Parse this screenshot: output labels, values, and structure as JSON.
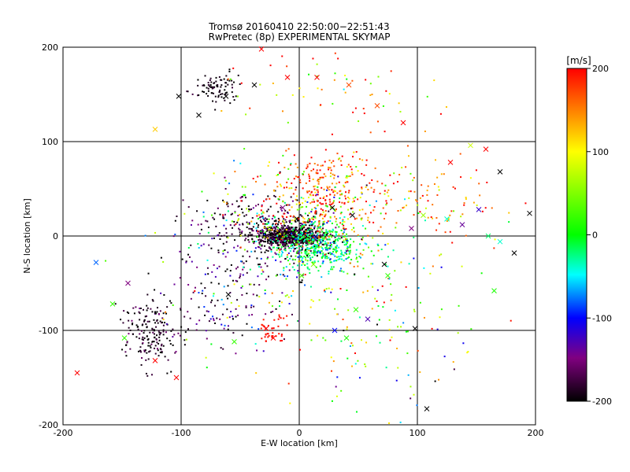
{
  "chart_data": {
    "type": "scatter",
    "title": "Tromsø 20160410 22:50:00−22:51:43",
    "subtitle": "RwPretec (8p) EXPERIMENTAL SKYMAP",
    "xlabel": "E-W location [km]",
    "ylabel": "N-S location [km]",
    "xlim": [
      -200,
      200
    ],
    "ylim": [
      -200,
      200
    ],
    "xticks": [
      "-200",
      "-100",
      "0",
      "100",
      "200"
    ],
    "yticks": [
      "200",
      "100",
      "0",
      "-100",
      "-200"
    ],
    "grid": true,
    "colorbar": {
      "unit": "[m/s]",
      "range": [
        -200,
        200
      ],
      "ticks": [
        "200",
        "100",
        "0",
        "-100",
        "-200"
      ],
      "colors": [
        "#ff0000",
        "#ffff00",
        "#00ff00",
        "#00ffff",
        "#0000ff",
        "#800080",
        "#000000"
      ]
    },
    "series": [
      {
        "marker": "x",
        "points": [
          {
            "x": -32,
            "y": 198,
            "v": 200
          },
          {
            "x": -10,
            "y": 168,
            "v": 200
          },
          {
            "x": 15,
            "y": 168,
            "v": 200
          },
          {
            "x": 42,
            "y": 160,
            "v": 170
          },
          {
            "x": 66,
            "y": 138,
            "v": 170
          },
          {
            "x": 88,
            "y": 120,
            "v": 200
          },
          {
            "x": 158,
            "y": 92,
            "v": 200
          },
          {
            "x": 145,
            "y": 96,
            "v": 80
          },
          {
            "x": 128,
            "y": 78,
            "v": 200
          },
          {
            "x": 170,
            "y": 68,
            "v": -200
          },
          {
            "x": 152,
            "y": 28,
            "v": -120
          },
          {
            "x": 138,
            "y": 12,
            "v": -140
          },
          {
            "x": 160,
            "y": 0,
            "v": -20
          },
          {
            "x": 170,
            "y": -6,
            "v": -40
          },
          {
            "x": 182,
            "y": -18,
            "v": -200
          },
          {
            "x": 195,
            "y": 24,
            "v": -200
          },
          {
            "x": 125,
            "y": 18,
            "v": -40
          },
          {
            "x": 95,
            "y": 8,
            "v": -150
          },
          {
            "x": -122,
            "y": 113,
            "v": 120
          },
          {
            "x": -85,
            "y": 128,
            "v": -200
          },
          {
            "x": -102,
            "y": 148,
            "v": -200
          },
          {
            "x": -38,
            "y": 160,
            "v": -200
          },
          {
            "x": -62,
            "y": 148,
            "v": -200
          },
          {
            "x": -14,
            "y": 30,
            "v": -150
          },
          {
            "x": -172,
            "y": -28,
            "v": -80
          },
          {
            "x": -158,
            "y": -72,
            "v": 20
          },
          {
            "x": -148,
            "y": -108,
            "v": 20
          },
          {
            "x": -122,
            "y": -132,
            "v": 200
          },
          {
            "x": -188,
            "y": -145,
            "v": 200
          },
          {
            "x": -104,
            "y": -150,
            "v": 200
          },
          {
            "x": -28,
            "y": -98,
            "v": 200
          },
          {
            "x": -22,
            "y": -108,
            "v": 200
          },
          {
            "x": 40,
            "y": -108,
            "v": 10
          },
          {
            "x": 48,
            "y": -78,
            "v": 20
          },
          {
            "x": 75,
            "y": -42,
            "v": 20
          },
          {
            "x": 98,
            "y": -98,
            "v": -200
          },
          {
            "x": 108,
            "y": -183,
            "v": -200
          },
          {
            "x": 72,
            "y": -30,
            "v": -200
          },
          {
            "x": 58,
            "y": -88,
            "v": -130
          },
          {
            "x": 30,
            "y": -100,
            "v": -100
          },
          {
            "x": -55,
            "y": -112,
            "v": 20
          },
          {
            "x": -60,
            "y": -62,
            "v": -200
          },
          {
            "x": -145,
            "y": -50,
            "v": -150
          },
          {
            "x": 28,
            "y": 30,
            "v": -200
          },
          {
            "x": 45,
            "y": 22,
            "v": -200
          },
          {
            "x": 2,
            "y": -42,
            "v": 30
          },
          {
            "x": 12,
            "y": -30,
            "v": 50
          },
          {
            "x": -2,
            "y": 18,
            "v": -200
          },
          {
            "x": 165,
            "y": -58,
            "v": 10
          },
          {
            "x": 105,
            "y": 22,
            "v": 60
          }
        ]
      },
      {
        "marker": "dot",
        "points": []
      }
    ]
  }
}
